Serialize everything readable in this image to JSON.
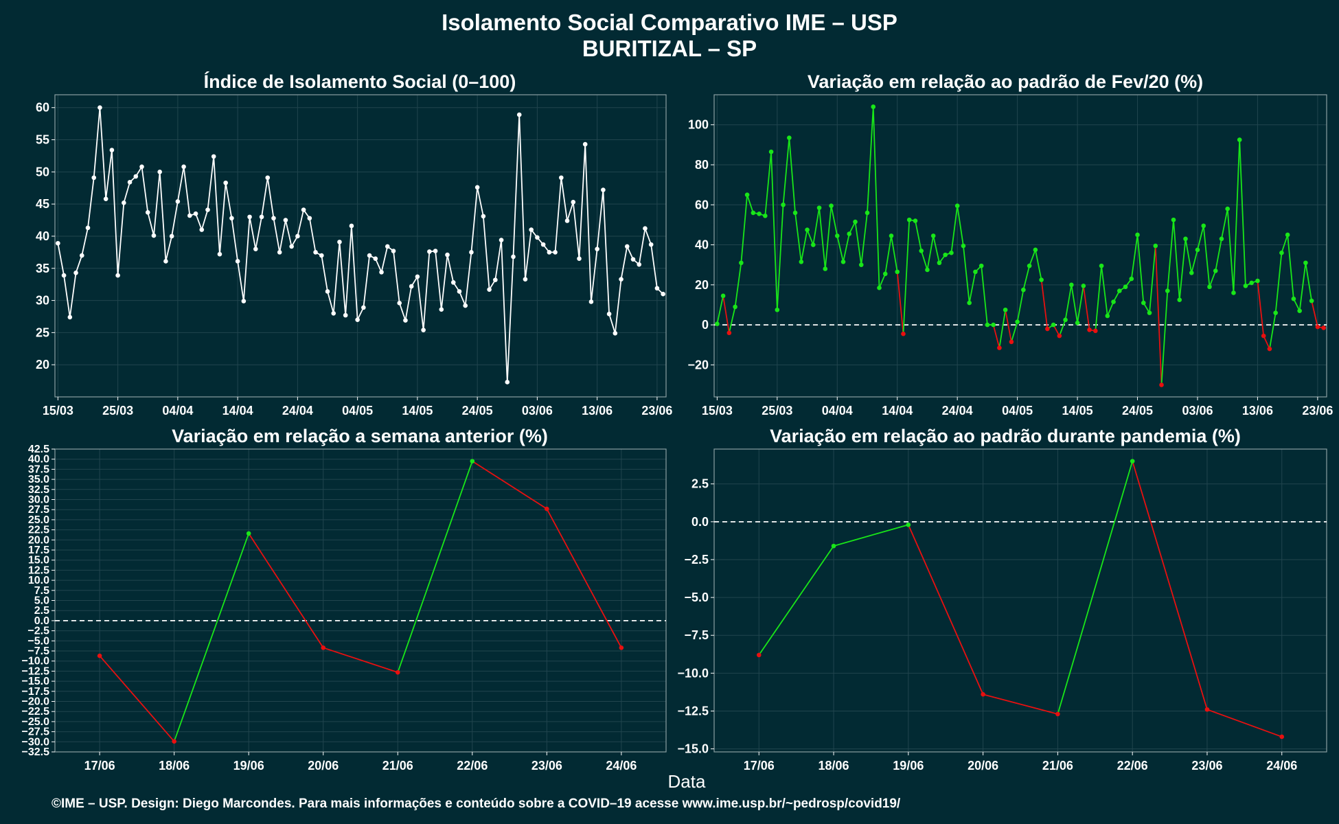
{
  "header": {
    "title": "Isolamento Social Comparativo IME – USP",
    "subtitle": "BURITIZAL – SP"
  },
  "xaxis_title": "Data",
  "footer": "©IME – USP. Design: Diego Marcondes. Para mais informações e conteúdo sobre a COVID–19 acesse www.ime.usp.br/~pedrosp/covid19/",
  "colors": {
    "background": "#022a33",
    "line_white": "#ffffff",
    "positive": "#19e619",
    "negative": "#e81010",
    "grid": "#21454e",
    "panel_border": "#8a9ea2"
  },
  "chart_data": [
    {
      "id": "isolation-index",
      "type": "line",
      "title": "Índice de Isolamento Social (0–100)",
      "color_mode": "white",
      "x_start": "15/03",
      "xticks": [
        "15/03",
        "25/03",
        "04/04",
        "14/04",
        "24/04",
        "04/05",
        "14/05",
        "24/05",
        "03/06",
        "13/06",
        "23/06"
      ],
      "xtick_positions": [
        0,
        10,
        20,
        30,
        40,
        50,
        60,
        70,
        80,
        90,
        100
      ],
      "xlim": [
        -0.5,
        101.5
      ],
      "ylim": [
        15,
        62
      ],
      "yticks": [
        20,
        25,
        30,
        35,
        40,
        45,
        50,
        55,
        60
      ],
      "ytick_labels": [
        "20",
        "25",
        "30",
        "35",
        "40",
        "45",
        "50",
        "55",
        "60"
      ],
      "zero_line": false,
      "x": [
        0,
        1,
        2,
        3,
        4,
        5,
        6,
        7,
        8,
        9,
        10,
        11,
        12,
        13,
        14,
        15,
        16,
        17,
        18,
        19,
        20,
        21,
        22,
        23,
        24,
        25,
        26,
        27,
        28,
        29,
        30,
        31,
        32,
        33,
        34,
        35,
        36,
        37,
        38,
        39,
        40,
        41,
        42,
        43,
        44,
        45,
        46,
        47,
        48,
        49,
        50,
        51,
        52,
        53,
        54,
        55,
        56,
        57,
        58,
        59,
        60,
        61,
        62,
        63,
        64,
        65,
        66,
        67,
        68,
        69,
        70,
        71,
        72,
        73,
        74,
        75,
        76,
        77,
        78,
        79,
        80,
        81,
        82,
        83,
        84,
        85,
        86,
        87,
        88,
        89,
        90,
        91,
        92,
        93,
        94,
        95,
        96,
        97,
        98,
        99,
        100,
        101
      ],
      "values": [
        38.9,
        33.9,
        27.4,
        34.3,
        37.0,
        41.3,
        49.1,
        60.0,
        45.8,
        53.4,
        33.9,
        45.2,
        48.4,
        49.3,
        50.8,
        43.7,
        40.1,
        50.0,
        36.1,
        40.0,
        45.4,
        50.8,
        43.2,
        43.5,
        41.0,
        44.1,
        52.4,
        37.2,
        48.3,
        42.8,
        36.1,
        29.9,
        43.0,
        38.0,
        43.0,
        49.1,
        42.8,
        37.5,
        42.5,
        38.4,
        40.0,
        44.1,
        42.8,
        37.5,
        37.0,
        31.4,
        28.0,
        39.1,
        27.7,
        41.6,
        27.0,
        28.9,
        37.0,
        36.5,
        34.4,
        38.4,
        37.7,
        29.6,
        26.9,
        32.2,
        33.7,
        25.4,
        37.6,
        37.7,
        28.6,
        37.1,
        32.8,
        31.4,
        29.2,
        37.5,
        47.6,
        43.1,
        31.7,
        33.2,
        39.4,
        17.3,
        36.8,
        58.9,
        33.3,
        41.0,
        39.8,
        38.7,
        37.5,
        37.5,
        49.1,
        42.4,
        45.3,
        36.5,
        54.3,
        29.8,
        38.0,
        47.2,
        27.9,
        24.9,
        33.3,
        38.4,
        36.4,
        35.6,
        41.2,
        38.7,
        31.9,
        31.0
      ]
    },
    {
      "id": "variation-feb20",
      "type": "line",
      "title": "Variação em relação ao padrão de Fev/20 (%)",
      "color_mode": "sign",
      "x_start": "15/03",
      "xticks": [
        "15/03",
        "25/03",
        "04/04",
        "14/04",
        "24/04",
        "04/05",
        "14/05",
        "24/05",
        "03/06",
        "13/06",
        "23/06"
      ],
      "xtick_positions": [
        0,
        10,
        20,
        30,
        40,
        50,
        60,
        70,
        80,
        90,
        100
      ],
      "xlim": [
        -0.5,
        101.5
      ],
      "ylim": [
        -36,
        115
      ],
      "yticks": [
        -20,
        0,
        20,
        40,
        60,
        80,
        100
      ],
      "ytick_labels": [
        "−20",
        "0",
        "20",
        "40",
        "60",
        "80",
        "100"
      ],
      "zero_line": true,
      "x": [
        0,
        1,
        2,
        3,
        4,
        5,
        6,
        7,
        8,
        9,
        10,
        11,
        12,
        13,
        14,
        15,
        16,
        17,
        18,
        19,
        20,
        21,
        22,
        23,
        24,
        25,
        26,
        27,
        28,
        29,
        30,
        31,
        32,
        33,
        34,
        35,
        36,
        37,
        38,
        39,
        40,
        41,
        42,
        43,
        44,
        45,
        46,
        47,
        48,
        49,
        50,
        51,
        52,
        53,
        54,
        55,
        56,
        57,
        58,
        59,
        60,
        61,
        62,
        63,
        64,
        65,
        66,
        67,
        68,
        69,
        70,
        71,
        72,
        73,
        74,
        75,
        76,
        77,
        78,
        79,
        80,
        81,
        82,
        83,
        84,
        85,
        86,
        87,
        88,
        89,
        90,
        91,
        92,
        93,
        94,
        95,
        96,
        97,
        98,
        99,
        100,
        101
      ],
      "values": [
        0.5,
        14.5,
        -4.0,
        9.0,
        31.0,
        65.0,
        56.0,
        55.5,
        54.5,
        86.5,
        7.5,
        60.0,
        93.5,
        56.0,
        31.5,
        47.5,
        40.0,
        58.5,
        28.0,
        59.5,
        44.5,
        31.5,
        45.5,
        51.5,
        30.0,
        56.0,
        109.0,
        18.5,
        25.5,
        44.5,
        26.5,
        -4.5,
        52.5,
        52.0,
        37.0,
        27.5,
        44.5,
        31.0,
        35.0,
        36.0,
        59.5,
        39.5,
        11.0,
        26.5,
        29.5,
        0.0,
        0.0,
        -11.5,
        7.5,
        -8.5,
        1.5,
        17.5,
        29.5,
        37.5,
        22.5,
        -2.0,
        0.0,
        -5.5,
        2.5,
        20.0,
        1.0,
        19.5,
        -2.5,
        -3.0,
        29.5,
        4.5,
        11.5,
        17.0,
        19.0,
        23.0,
        45.0,
        11.0,
        6.0,
        39.5,
        -30.0,
        17.0,
        52.5,
        12.5,
        43.0,
        26.0,
        37.5,
        49.5,
        19.0,
        27.0,
        43.0,
        58.0,
        16.0,
        92.5,
        19.5,
        21.0,
        22.0,
        -5.5,
        -12.0,
        6.0,
        36.0,
        45.0,
        13.0,
        7.0,
        31.0,
        12.0,
        -1.0,
        -1.5
      ]
    },
    {
      "id": "variation-previous-week",
      "type": "line",
      "title": "Variação em relação a semana anterior (%)",
      "color_mode": "trend",
      "xticks": [
        "17/06",
        "18/06",
        "19/06",
        "20/06",
        "21/06",
        "22/06",
        "23/06",
        "24/06"
      ],
      "xtick_positions": [
        0,
        1,
        2,
        3,
        4,
        5,
        6,
        7
      ],
      "xlim": [
        -0.6,
        7.6
      ],
      "ylim": [
        -32.5,
        42.5
      ],
      "yticks": [
        -32.5,
        -30,
        -27.5,
        -25,
        -22.5,
        -20,
        -17.5,
        -15,
        -12.5,
        -10,
        -7.5,
        -5,
        -2.5,
        0,
        2.5,
        5,
        7.5,
        10,
        12.5,
        15,
        17.5,
        20,
        22.5,
        25,
        27.5,
        30,
        32.5,
        35,
        37.5,
        40,
        42.5
      ],
      "ytick_labels": [
        "−32.5",
        "−30.0",
        "−27.5",
        "−25.0",
        "−22.5",
        "−20.0",
        "−17.5",
        "−15.0",
        "−12.5",
        "−10.0",
        "−7.5",
        "−5.0",
        "−2.5",
        "0.0",
        "2.5",
        "5.0",
        "7.5",
        "10.0",
        "12.5",
        "15.0",
        "17.5",
        "20.0",
        "22.5",
        "25.0",
        "27.5",
        "30.0",
        "32.5",
        "35.0",
        "37.5",
        "40.0",
        "42.5"
      ],
      "zero_line": true,
      "x": [
        0,
        1,
        2,
        3,
        4,
        5,
        6,
        7
      ],
      "values": [
        -8.7,
        -29.9,
        21.6,
        -6.7,
        -12.8,
        39.5,
        27.7,
        -6.7
      ]
    },
    {
      "id": "variation-pandemic",
      "type": "line",
      "title": "Variação em relação ao padrão durante pandemia (%)",
      "color_mode": "trend",
      "xticks": [
        "17/06",
        "18/06",
        "19/06",
        "20/06",
        "21/06",
        "22/06",
        "23/06",
        "24/06"
      ],
      "xtick_positions": [
        0,
        1,
        2,
        3,
        4,
        5,
        6,
        7
      ],
      "xlim": [
        -0.6,
        7.6
      ],
      "ylim": [
        -15.2,
        4.8
      ],
      "yticks": [
        -15,
        -12.5,
        -10,
        -7.5,
        -5,
        -2.5,
        0,
        2.5
      ],
      "ytick_labels": [
        "−15.0",
        "−12.5",
        "−10.0",
        "−7.5",
        "−5.0",
        "−2.5",
        "0.0",
        "2.5"
      ],
      "zero_line": true,
      "x": [
        0,
        1,
        2,
        3,
        4,
        5,
        6,
        7
      ],
      "values": [
        -8.8,
        -1.6,
        -0.2,
        -11.4,
        -12.7,
        4.0,
        -12.4,
        -14.2
      ]
    }
  ]
}
